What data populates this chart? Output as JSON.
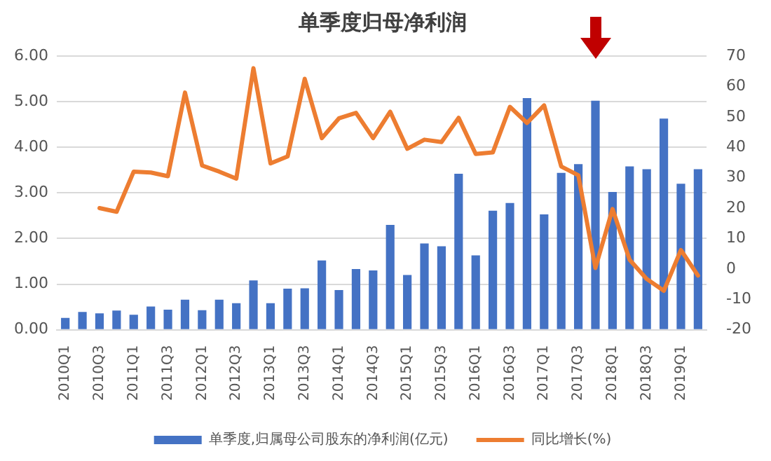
{
  "chart_data": {
    "type": "bar",
    "title": "单季度归母净利润",
    "categories": [
      "2010Q1",
      null,
      "2010Q3",
      null,
      "2011Q1",
      null,
      "2011Q3",
      null,
      "2012Q1",
      null,
      "2012Q3",
      null,
      "2013Q1",
      null,
      "2013Q3",
      null,
      "2014Q1",
      null,
      "2014Q3",
      null,
      "2015Q1",
      null,
      "2015Q3",
      null,
      "2016Q1",
      null,
      "2016Q3",
      null,
      "2017Q1",
      null,
      "2017Q3",
      null,
      "2018Q1",
      null,
      "2018Q3",
      null,
      "2019Q1",
      null
    ],
    "series": [
      {
        "name": "单季度,归属母公司股东的净利润(亿元)",
        "color": "#4472c4",
        "values": [
          0.26,
          0.39,
          0.36,
          0.42,
          0.33,
          0.51,
          0.44,
          0.66,
          0.43,
          0.66,
          0.58,
          1.08,
          0.58,
          0.9,
          0.91,
          1.52,
          0.87,
          1.33,
          1.3,
          2.3,
          1.2,
          1.89,
          1.83,
          3.42,
          1.63,
          2.61,
          2.78,
          5.08,
          2.53,
          3.44,
          3.63,
          5.02,
          3.02,
          3.58,
          3.52,
          4.63,
          3.2,
          3.52
        ]
      },
      {
        "name": "同比增长(%)",
        "type": "line",
        "axis": "y2",
        "color": "#ed7d31",
        "values": [
          null,
          null,
          20,
          18.8,
          32,
          31.7,
          30.5,
          58,
          34,
          32,
          29.7,
          66,
          34.7,
          37,
          62.5,
          43,
          49.5,
          51.3,
          43,
          51.7,
          39.5,
          42.5,
          41.7,
          49.7,
          37.8,
          38.3,
          53.3,
          48,
          53.8,
          33.7,
          30.8,
          0.3,
          19.7,
          3,
          -3.3,
          -7.2,
          6.2,
          -2.2
        ]
      }
    ],
    "ylim": [
      0,
      6
    ],
    "yticks": [
      {
        "value": 0,
        "label": "0.00"
      },
      {
        "value": 1,
        "label": "1.00"
      },
      {
        "value": 2,
        "label": "2.00"
      },
      {
        "value": 3,
        "label": "3.00"
      },
      {
        "value": 4,
        "label": "4.00"
      },
      {
        "value": 5,
        "label": "5.00"
      },
      {
        "value": 6,
        "label": "6.00"
      }
    ],
    "y2lim": [
      -20,
      70
    ],
    "y2ticks": [
      -20,
      -10,
      0,
      10,
      20,
      30,
      40,
      50,
      60,
      70
    ],
    "grid": "y",
    "legend": "bottom",
    "marker": "none",
    "line_style": "solid"
  }
}
